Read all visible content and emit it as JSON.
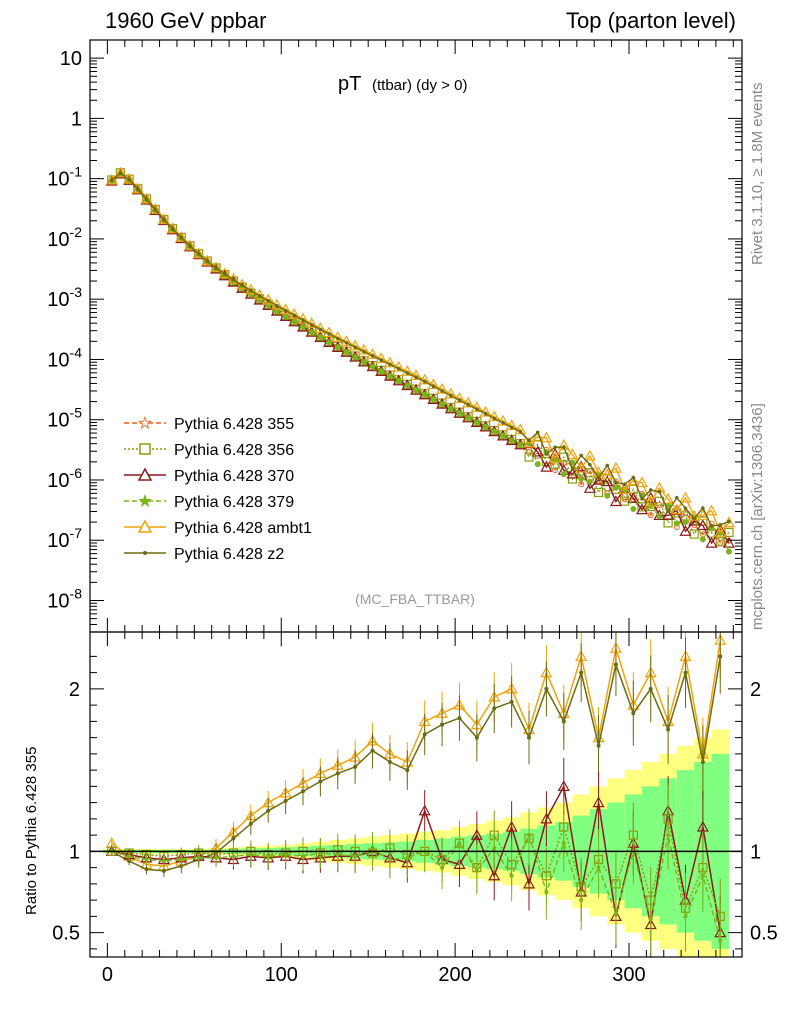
{
  "header": {
    "left": "1960 GeV ppbar",
    "right": "Top (parton level)"
  },
  "side_labels": {
    "rivet": "Rivet 3.1.10, ≥ 1.8M events",
    "mcplots": "mcplots.cern.ch [arXiv:1306.3436]"
  },
  "chart_data": [
    {
      "type": "line",
      "panel": "main",
      "title_main": "pT",
      "title_sub": "(ttbar) (dy > 0)",
      "analysis_tag": "(MC_FBA_TTBAR)",
      "yscale": "log",
      "xlim": [
        -10,
        365
      ],
      "ylim": [
        3e-09,
        20
      ],
      "y_tick_labels": [
        "10",
        "1",
        "10^-1",
        "10^-2",
        "10^-3",
        "10^-4",
        "10^-5",
        "10^-6",
        "10^-7",
        "10^-8"
      ],
      "y_tick_values": [
        10,
        1,
        0.1,
        0.01,
        0.001,
        0.0001,
        1e-05,
        1e-06,
        1e-07,
        1e-08
      ],
      "legend_position": "lower-left",
      "series": [
        {
          "name": "Pythia 6.428 355",
          "color": "#e8641c",
          "marker": "star-open",
          "linestyle": "dashed"
        },
        {
          "name": "Pythia 6.428 356",
          "color": "#8c9a10",
          "marker": "square-open",
          "linestyle": "dotted"
        },
        {
          "name": "Pythia 6.428 370",
          "color": "#8b1a1a",
          "marker": "triangle-open",
          "linestyle": "solid"
        },
        {
          "name": "Pythia 6.428 379",
          "color": "#7ab51d",
          "marker": "star-filled",
          "linestyle": "dashed"
        },
        {
          "name": "Pythia 6.428 ambt1",
          "color": "#f0a30a",
          "marker": "triangle-open",
          "linestyle": "solid"
        },
        {
          "name": "Pythia 6.428 z2",
          "color": "#6b6b10",
          "marker": "dot",
          "linestyle": "solid"
        }
      ],
      "x": [
        2.5,
        7.5,
        12.5,
        17.5,
        22.5,
        27.5,
        32.5,
        37.5,
        42.5,
        47.5,
        52.5,
        57.5,
        62.5,
        67.5,
        72.5,
        77.5,
        82.5,
        87.5,
        92.5,
        97.5,
        102.5,
        107.5,
        112.5,
        117.5,
        122.5,
        127.5,
        132.5,
        137.5,
        142.5,
        147.5,
        152.5,
        157.5,
        162.5,
        167.5,
        172.5,
        177.5,
        182.5,
        187.5,
        192.5,
        197.5,
        202.5,
        207.5,
        212.5,
        217.5,
        222.5,
        227.5,
        232.5,
        237.5,
        242.5,
        247.5,
        252.5,
        257.5,
        262.5,
        267.5,
        272.5,
        277.5,
        282.5,
        287.5,
        292.5,
        297.5,
        302.5,
        307.5,
        312.5,
        317.5,
        322.5,
        327.5,
        332.5,
        337.5,
        342.5,
        347.5,
        352.5,
        357.5
      ],
      "reference_values": [
        0.095,
        0.125,
        0.098,
        0.068,
        0.046,
        0.031,
        0.021,
        0.0148,
        0.0106,
        0.0077,
        0.0057,
        0.0043,
        0.0033,
        0.00255,
        0.002,
        0.00158,
        0.00126,
        0.00101,
        0.00082,
        0.00066,
        0.00054,
        0.00044,
        0.00036,
        0.000295,
        0.000242,
        0.0002,
        0.000165,
        0.000137,
        0.000114,
        9.5e-05,
        7.9e-05,
        6.6e-05,
        5.5e-05,
        4.6e-05,
        3.85e-05,
        3.22e-05,
        2.7e-05,
        2.26e-05,
        1.89e-05,
        1.58e-05,
        1.33e-05,
        1.12e-05,
        9.4e-06,
        7.9e-06,
        6.6e-06,
        5.6e-06,
        4.7e-06,
        4e-06,
        3.4e-06,
        2.9e-06,
        2.4e-06,
        2.1e-06,
        1.8e-06,
        1.5e-06,
        1.3e-06,
        1.1e-06,
        9.5e-07,
        8.2e-07,
        7e-07,
        6e-07,
        5.2e-07,
        4.5e-07,
        3.9e-07,
        3.4e-07,
        2.9e-07,
        2.5e-07,
        2.2e-07,
        1.9e-07,
        1.6e-07,
        1.4e-07,
        1.2e-07,
        1e-07
      ]
    },
    {
      "type": "line",
      "panel": "ratio",
      "ylabel": "Ratio to Pythia 6.428 355",
      "xlim": [
        -10,
        365
      ],
      "ylim": [
        0.35,
        2.35
      ],
      "y_tick_labels": [
        "2",
        "1",
        "0.5"
      ],
      "y_tick_values": [
        2,
        1,
        0.5
      ],
      "x_tick_labels": [
        "0",
        "100",
        "200",
        "300"
      ],
      "x_tick_values": [
        0,
        100,
        200,
        300
      ],
      "band_colors": {
        "outer": "#ffff80",
        "inner": "#80ff80"
      },
      "x": [
        2.5,
        12.5,
        22.5,
        32.5,
        42.5,
        52.5,
        62.5,
        72.5,
        82.5,
        92.5,
        102.5,
        112.5,
        122.5,
        132.5,
        142.5,
        152.5,
        162.5,
        172.5,
        182.5,
        192.5,
        202.5,
        212.5,
        222.5,
        232.5,
        242.5,
        252.5,
        262.5,
        272.5,
        282.5,
        292.5,
        302.5,
        312.5,
        322.5,
        332.5,
        342.5,
        352.5
      ],
      "series": [
        {
          "name": "Pythia 6.428 ambt1",
          "values": [
            1.05,
            0.97,
            0.92,
            0.91,
            0.94,
            0.97,
            1.02,
            1.12,
            1.22,
            1.3,
            1.36,
            1.42,
            1.48,
            1.53,
            1.58,
            1.68,
            1.6,
            1.55,
            1.8,
            1.85,
            1.9,
            1.78,
            1.95,
            2.0,
            1.75,
            2.1,
            1.85,
            2.2,
            1.7,
            2.25,
            1.9,
            2.1,
            1.8,
            2.2,
            1.6,
            2.3
          ]
        },
        {
          "name": "Pythia 6.428 z2",
          "values": [
            1.0,
            0.94,
            0.89,
            0.88,
            0.91,
            0.95,
            0.99,
            1.08,
            1.17,
            1.25,
            1.31,
            1.37,
            1.43,
            1.48,
            1.52,
            1.62,
            1.55,
            1.5,
            1.72,
            1.78,
            1.82,
            1.7,
            1.88,
            1.92,
            1.7,
            2.0,
            1.8,
            2.1,
            1.65,
            2.15,
            1.85,
            2.0,
            1.75,
            2.1,
            1.55,
            2.2
          ]
        },
        {
          "name": "Pythia 6.428 370",
          "values": [
            1.0,
            0.98,
            0.96,
            0.95,
            0.96,
            0.97,
            0.96,
            0.95,
            0.97,
            0.96,
            0.97,
            0.95,
            0.96,
            0.97,
            0.97,
            1.0,
            0.96,
            0.93,
            1.25,
            0.95,
            0.92,
            1.1,
            0.85,
            1.15,
            0.8,
            1.2,
            1.4,
            0.75,
            1.3,
            0.6,
            1.05,
            0.55,
            1.25,
            0.7,
            1.15,
            0.5
          ]
        },
        {
          "name": "Pythia 6.428 356",
          "values": [
            1.0,
            0.99,
            0.98,
            0.97,
            0.98,
            0.99,
            0.98,
            0.99,
            1.0,
            0.98,
            0.99,
            1.0,
            0.99,
            1.01,
            1.0,
            0.99,
            1.02,
            0.98,
            1.0,
            0.95,
            1.05,
            0.9,
            1.1,
            0.92,
            1.08,
            0.85,
            1.15,
            0.78,
            0.95,
            0.8,
            1.1,
            0.7,
            1.2,
            0.65,
            0.9,
            0.6
          ]
        },
        {
          "name": "Pythia 6.428 379",
          "values": [
            1.0,
            0.97,
            0.95,
            0.94,
            0.95,
            0.96,
            0.96,
            0.97,
            0.98,
            0.97,
            0.98,
            0.97,
            0.99,
            0.98,
            0.97,
            1.01,
            0.95,
            0.96,
            1.0,
            0.9,
            1.05,
            0.88,
            1.02,
            0.85,
            1.1,
            0.75,
            1.05,
            0.7,
            0.9,
            0.62,
            1.0,
            0.58,
            1.1,
            0.6,
            0.85,
            0.45
          ]
        }
      ],
      "band_inner_halfwidth": [
        0.01,
        0.01,
        0.01,
        0.01,
        0.01,
        0.01,
        0.012,
        0.015,
        0.018,
        0.02,
        0.025,
        0.03,
        0.035,
        0.04,
        0.045,
        0.05,
        0.055,
        0.06,
        0.07,
        0.08,
        0.09,
        0.1,
        0.11,
        0.12,
        0.14,
        0.16,
        0.18,
        0.22,
        0.26,
        0.3,
        0.35,
        0.4,
        0.45,
        0.5,
        0.55,
        0.6
      ],
      "band_outer_halfwidth": [
        0.015,
        0.015,
        0.015,
        0.015,
        0.015,
        0.015,
        0.02,
        0.025,
        0.03,
        0.035,
        0.04,
        0.05,
        0.06,
        0.07,
        0.08,
        0.09,
        0.1,
        0.11,
        0.12,
        0.13,
        0.15,
        0.17,
        0.19,
        0.21,
        0.24,
        0.27,
        0.3,
        0.35,
        0.4,
        0.45,
        0.5,
        0.55,
        0.6,
        0.65,
        0.7,
        0.75
      ]
    }
  ]
}
